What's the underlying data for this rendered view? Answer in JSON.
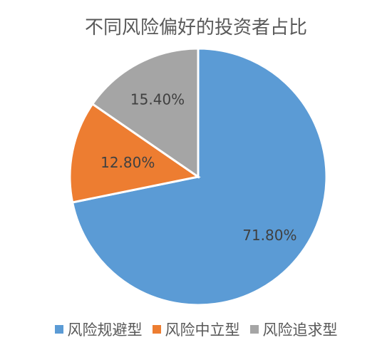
{
  "chart_data": {
    "type": "pie",
    "title": "不同风险偏好的投资者占比",
    "slices": [
      {
        "name": "风险规避型",
        "value": 71.8,
        "label": "71.80%",
        "color": "#5b9bd5"
      },
      {
        "name": "风险中立型",
        "value": 12.8,
        "label": "12.80%",
        "color": "#ed7d31"
      },
      {
        "name": "风险追求型",
        "value": 15.4,
        "label": "15.40%",
        "color": "#a5a5a5"
      }
    ],
    "legend_position": "bottom"
  }
}
